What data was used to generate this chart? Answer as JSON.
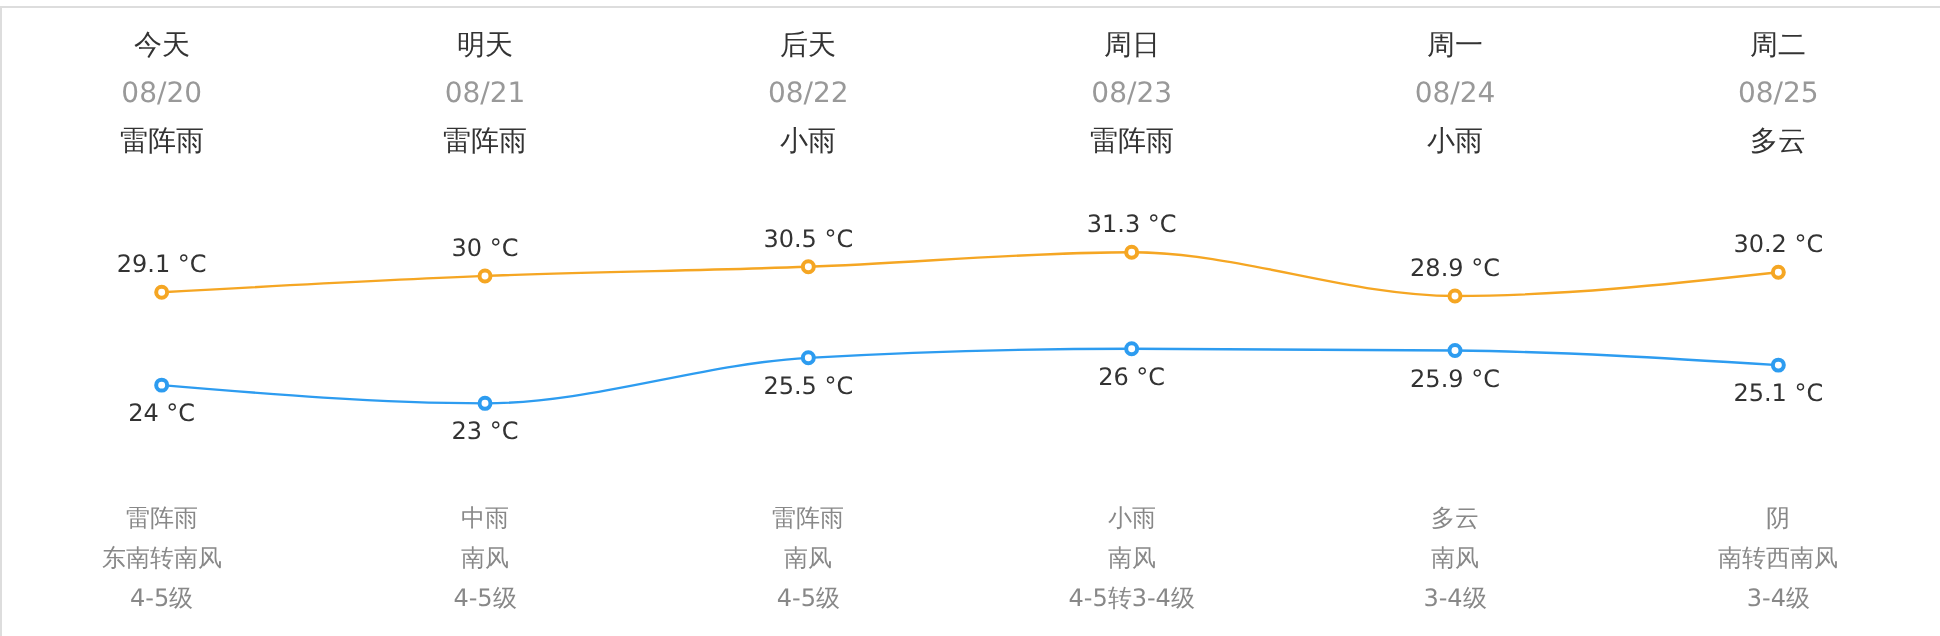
{
  "chart_data": {
    "type": "line",
    "categories": [
      "今天\n08/20\n雷阵雨",
      "明天\n08/21\n雷阵雨",
      "后天\n08/22\n小雨",
      "周日\n08/23\n雷阵雨",
      "周一\n08/24\n小雨",
      "周二\n08/25\n多云"
    ],
    "series": [
      {
        "color": "#f5a623",
        "values": [
          29.1,
          30,
          30.5,
          31.3,
          28.9,
          30.2
        ],
        "value_labels": [
          "29.1 °C",
          "30 °C",
          "30.5 °C",
          "31.3 °C",
          "28.9 °C",
          "30.2 °C"
        ]
      },
      {
        "color": "#2d9cf0",
        "values": [
          24,
          23,
          25.5,
          26,
          25.9,
          25.1
        ],
        "value_labels": [
          "24 °C",
          "23 °C",
          "25.5 °C",
          "26 °C",
          "25.9 °C",
          "25.1 °C"
        ]
      }
    ],
    "annotations": [
      "雷阵雨",
      "东南转南风",
      "4-5级",
      "中雨",
      "南风",
      "4-5级",
      "雷阵雨",
      "南风",
      "4-5级",
      "小雨",
      "南风",
      "4-5转3-4级",
      "多云",
      "南风",
      "3-4级",
      "阴",
      "南转西南风",
      "3-4级"
    ],
    "marker": "circle",
    "line_style": "solid"
  }
}
